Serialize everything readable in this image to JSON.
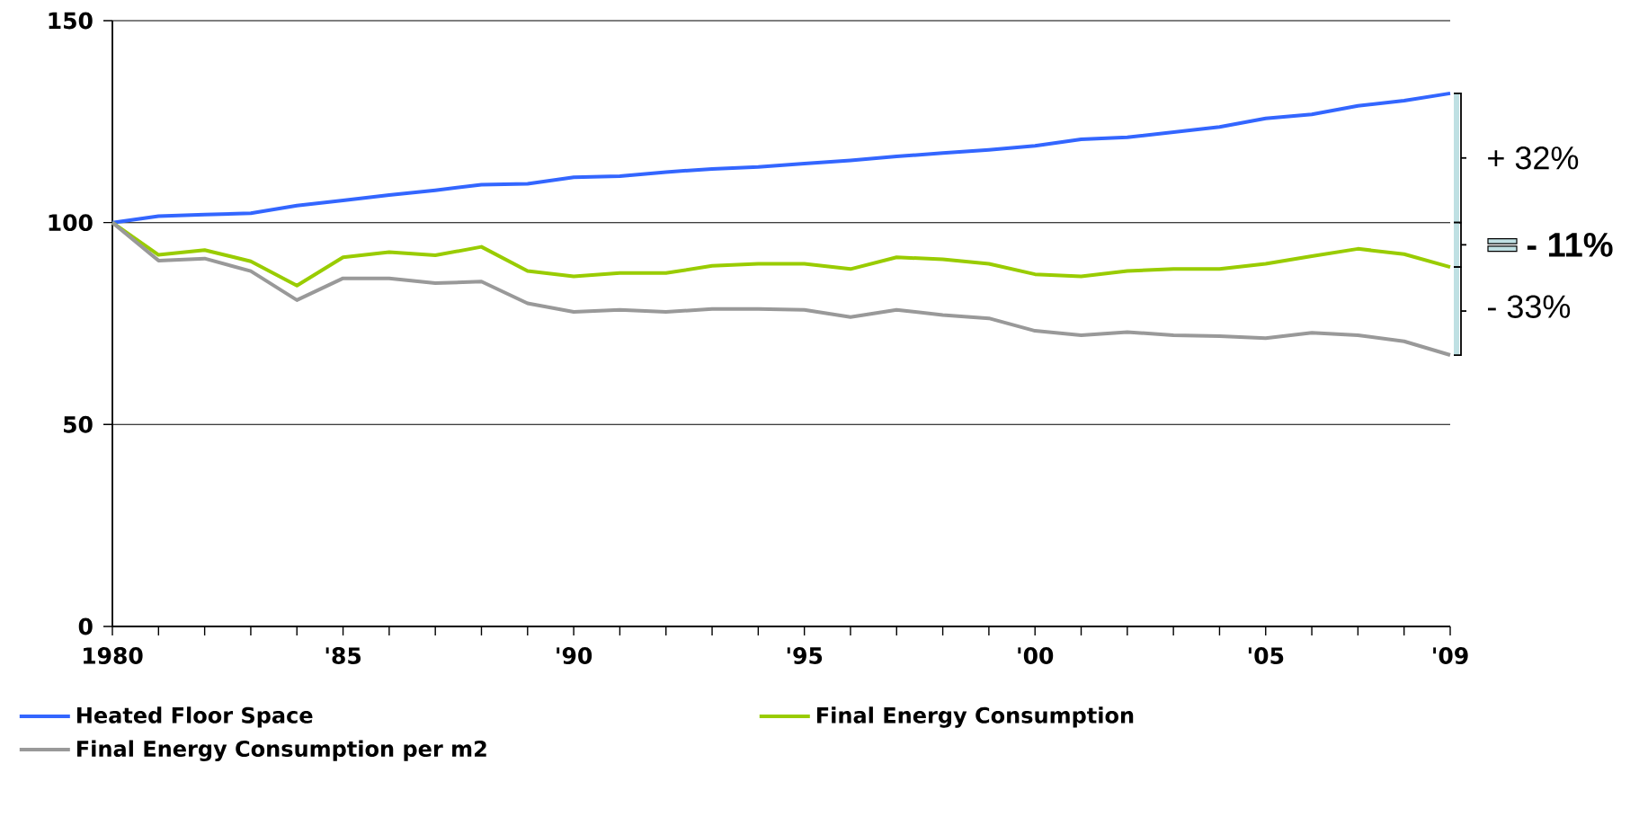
{
  "chart_data": {
    "type": "line",
    "categories": [
      "1980",
      null,
      null,
      null,
      null,
      "'85",
      null,
      null,
      null,
      null,
      "'90",
      null,
      null,
      null,
      null,
      "'95",
      null,
      null,
      null,
      null,
      "'00",
      null,
      null,
      null,
      null,
      "'05",
      null,
      null,
      null,
      "'09"
    ],
    "series": [
      {
        "name": "Heated Floor Space",
        "color": "#3366ff",
        "values": [
          100,
          101.6,
          102,
          102.3,
          104.2,
          105.5,
          106.8,
          108,
          109.4,
          109.6,
          111.2,
          111.5,
          112.5,
          113.3,
          113.8,
          114.6,
          115.4,
          116.4,
          117.2,
          118,
          119,
          120.6,
          121.1,
          122.4,
          123.7,
          125.8,
          126.8,
          128.9,
          130.2,
          132
        ]
      },
      {
        "name": "Final Energy Consumption",
        "color": "#99cc00",
        "values": [
          100,
          92,
          93.2,
          90.4,
          84.4,
          91.4,
          92.7,
          91.9,
          94,
          88,
          86.7,
          87.5,
          87.5,
          89.3,
          89.8,
          89.8,
          88.5,
          91.4,
          90.9,
          89.8,
          87.2,
          86.7,
          88,
          88.5,
          88.5,
          89.8,
          91.7,
          93.5,
          92.2,
          89
        ]
      },
      {
        "name": "Final Energy Consumption per m2",
        "color": "#999999",
        "values": [
          100,
          90.6,
          91.1,
          88,
          80.8,
          86.2,
          86.2,
          85,
          85.4,
          80,
          77.9,
          78.4,
          77.9,
          78.6,
          78.6,
          78.4,
          76.6,
          78.4,
          77.1,
          76.3,
          73.2,
          72.1,
          72.9,
          72.1,
          71.9,
          71.4,
          72.7,
          72.1,
          70.6,
          67.2
        ]
      }
    ],
    "ylim": [
      0,
      150
    ],
    "yticks": [
      0,
      50,
      100,
      150
    ],
    "grid": "y",
    "legend": "bottom",
    "marker": "none",
    "line_style": "solid",
    "annotations": [
      "+ 32%",
      "- 11%",
      "- 33%"
    ]
  }
}
